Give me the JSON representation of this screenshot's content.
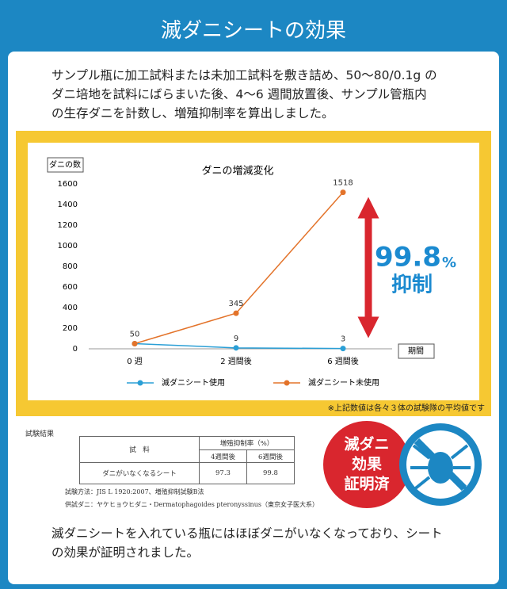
{
  "header": {
    "title": "滅ダニシートの効果"
  },
  "intro": [
    "サンプル瓶に加工試料または未加工試料を敷き詰め、50〜80/0.1g の",
    "ダニ培地を試料にばらまいた後、4〜6 週間放置後、サンプル管瓶内",
    "の生存ダニを計数し、増殖抑制率を算出しました。"
  ],
  "chart_data": {
    "type": "line",
    "title": "ダニの増減変化",
    "y_label": "ダニの数",
    "x_label": "期間",
    "categories": [
      "0 週",
      "2 週間後",
      "6 週間後"
    ],
    "series": [
      {
        "name": "滅ダニシート使用",
        "color": "#2a9fd6",
        "values": [
          50,
          9,
          3
        ]
      },
      {
        "name": "滅ダニシート未使用",
        "color": "#e3732a",
        "values": [
          50,
          345,
          1518
        ]
      }
    ],
    "ylim": [
      0,
      1600
    ],
    "yticks": [
      0,
      200,
      400,
      600,
      800,
      1000,
      1200,
      1400,
      1600
    ],
    "grid": false,
    "annotation": {
      "value": "99.8",
      "unit": "%",
      "label": "抑制"
    },
    "note": "※上記数値は各々３体の試験隊の平均値です"
  },
  "results": {
    "title": "試験結果",
    "header": [
      "試　料",
      "増殖抑制率（%）",
      "4週間後",
      "6週間後"
    ],
    "row": [
      "ダニがいなくなるシート",
      "97.3",
      "99.8"
    ],
    "notes": [
      "試験方法：JIS L 1920:2007、増殖抑制試験B法",
      "供試ダニ：ヤケヒョウヒダニ・Dermatophagoides pteronyssinus（東京女子医大系）"
    ]
  },
  "badge": [
    "滅ダニ",
    "効果",
    "証明済"
  ],
  "conclusion": [
    "滅ダニシートを入れている瓶にはほぼダニがいなくなっており、シート",
    "の効果が証明されました。"
  ]
}
